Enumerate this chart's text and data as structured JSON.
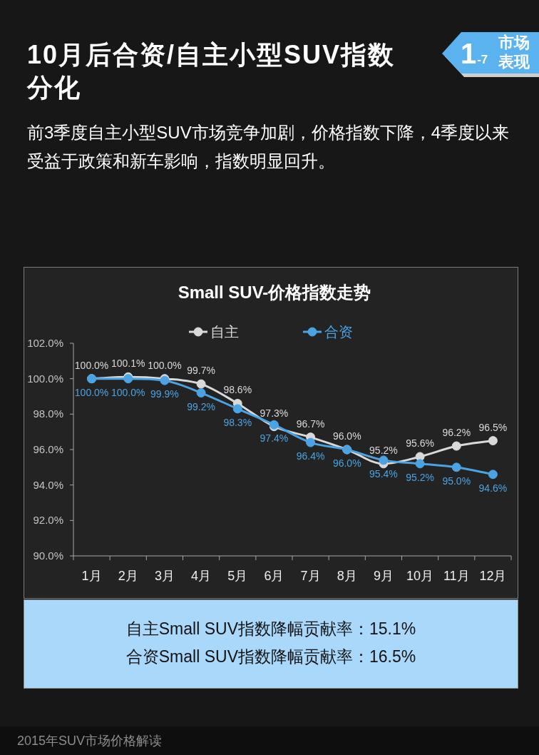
{
  "chart_data": {
    "type": "line",
    "title": "Small SUV-价格指数走势",
    "categories": [
      "1月",
      "2月",
      "3月",
      "4月",
      "5月",
      "6月",
      "7月",
      "8月",
      "9月",
      "10月",
      "11月",
      "12月"
    ],
    "series": [
      {
        "name": "自主",
        "color": "#d9d9d9",
        "values": [
          100.0,
          100.1,
          100.0,
          99.7,
          98.6,
          97.3,
          96.7,
          96.0,
          95.2,
          95.6,
          96.2,
          96.5
        ],
        "value_labels": [
          "100.0%",
          "100.1%",
          "100.0%",
          "99.7%",
          "98.6%",
          "97.3%",
          "96.7%",
          "96.0%",
          "95.2%",
          "95.6%",
          "96.2%",
          "96.5%"
        ]
      },
      {
        "name": "合资",
        "color": "#4ba3e3",
        "values": [
          100.0,
          100.0,
          99.9,
          99.2,
          98.3,
          97.4,
          96.4,
          96.0,
          95.4,
          95.2,
          95.0,
          94.6
        ],
        "value_labels": [
          "100.0%",
          "100.0%",
          "99.9%",
          "99.2%",
          "98.3%",
          "97.4%",
          "96.4%",
          "96.0%",
          "95.4%",
          "95.2%",
          "95.0%",
          "94.6%"
        ]
      }
    ],
    "ylim": [
      90,
      102
    ],
    "yticks": [
      {
        "value": 90,
        "label": "90.0%"
      },
      {
        "value": 92,
        "label": "92.0%"
      },
      {
        "value": 94,
        "label": "94.0%"
      },
      {
        "value": 96,
        "label": "96.0%"
      },
      {
        "value": 98,
        "label": "98.0%"
      },
      {
        "value": 100,
        "label": "100.0%"
      },
      {
        "value": 102,
        "label": "102.0%"
      }
    ],
    "legend": "top",
    "marker": "circle",
    "line_style": "solid",
    "annotations": [
      "10月后合资/自主小型SUV指数分化",
      "前3季度自主小型SUV市场竞争加剧，价格指数下降，4季度以来受益于政策和新车影响，指数明显回升。",
      "1$_{-7}$",
      "市场表现",
      "自主Small SUV指数降幅贡献率：15.1%",
      "合资Small SUV指数降幅贡献率：16.5%",
      "2015年SUV市场价格解读"
    ]
  }
}
